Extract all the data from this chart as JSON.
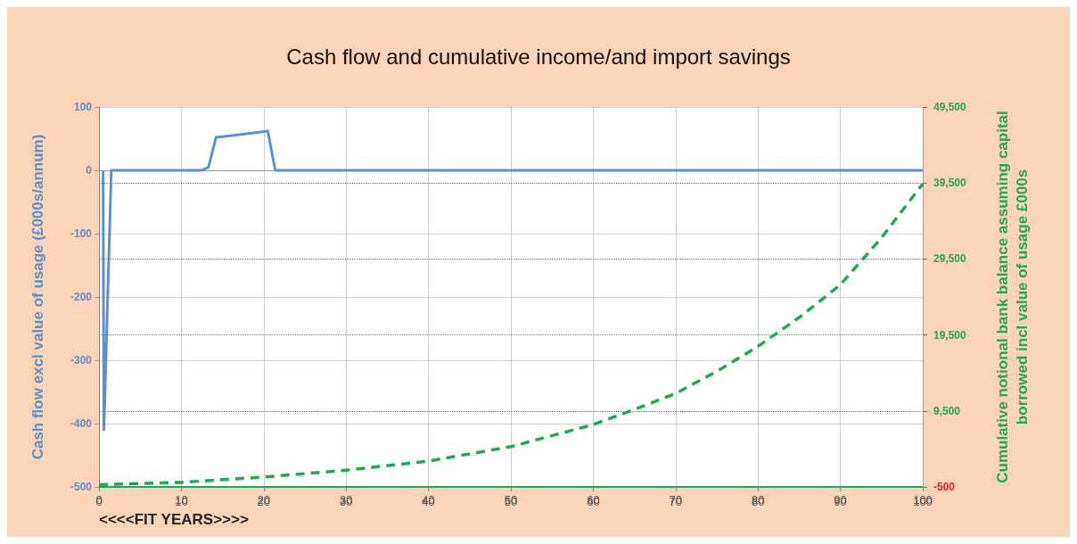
{
  "chart_data": {
    "type": "line",
    "title": "Cash flow and cumulative income/and import savings",
    "xlabel": "<<<<FIT YEARS>>>>",
    "ylabel": "Cash flow excl value of usage (£000s/annum)",
    "y2label": "Cumulative notional bank balance assuming capital\nborrowed incl value of usage £000s",
    "xlim": [
      0,
      100
    ],
    "xticks": [
      0,
      10,
      20,
      30,
      40,
      50,
      60,
      70,
      80,
      90,
      100
    ],
    "x2lim": [
      0,
      100
    ],
    "x2ticks": [
      0,
      10,
      20,
      30,
      40,
      50,
      60,
      70,
      80,
      90,
      100
    ],
    "ylim": [
      -500,
      100
    ],
    "yticks": [
      -500,
      -400,
      -300,
      -200,
      -100,
      0,
      100
    ],
    "y2lim": [
      -500,
      49500
    ],
    "y2ticks": [
      -500,
      {
        "value": 9500,
        "label": "9,500"
      },
      {
        "value": 19500,
        "label": "19,500"
      },
      {
        "value": 29500,
        "label": "29,500"
      },
      {
        "value": 39500,
        "label": "39,500"
      },
      {
        "value": 49500,
        "label": "49,500"
      }
    ],
    "series": [
      {
        "color": "#5b8fd0",
        "axis": "y",
        "line_style": "solid",
        "x": [
          0.5,
          0.6,
          1.5,
          12.5,
          13.3,
          14.2,
          20.5,
          21.4,
          100
        ],
        "values": [
          0,
          -410,
          0,
          0,
          5,
          52,
          62,
          0,
          0
        ]
      },
      {
        "color": "#1eaa50",
        "axis": "y2",
        "line_style": "dashed",
        "x": [
          0,
          10,
          20,
          30,
          40,
          50,
          60,
          65,
          70,
          75,
          80,
          85,
          90,
          95,
          100
        ],
        "values": [
          -200,
          100,
          800,
          1700,
          2900,
          4800,
          7700,
          9700,
          11800,
          14700,
          18000,
          21800,
          26100,
          32300,
          39400
        ]
      }
    ],
    "marker": "none",
    "grid": true
  }
}
